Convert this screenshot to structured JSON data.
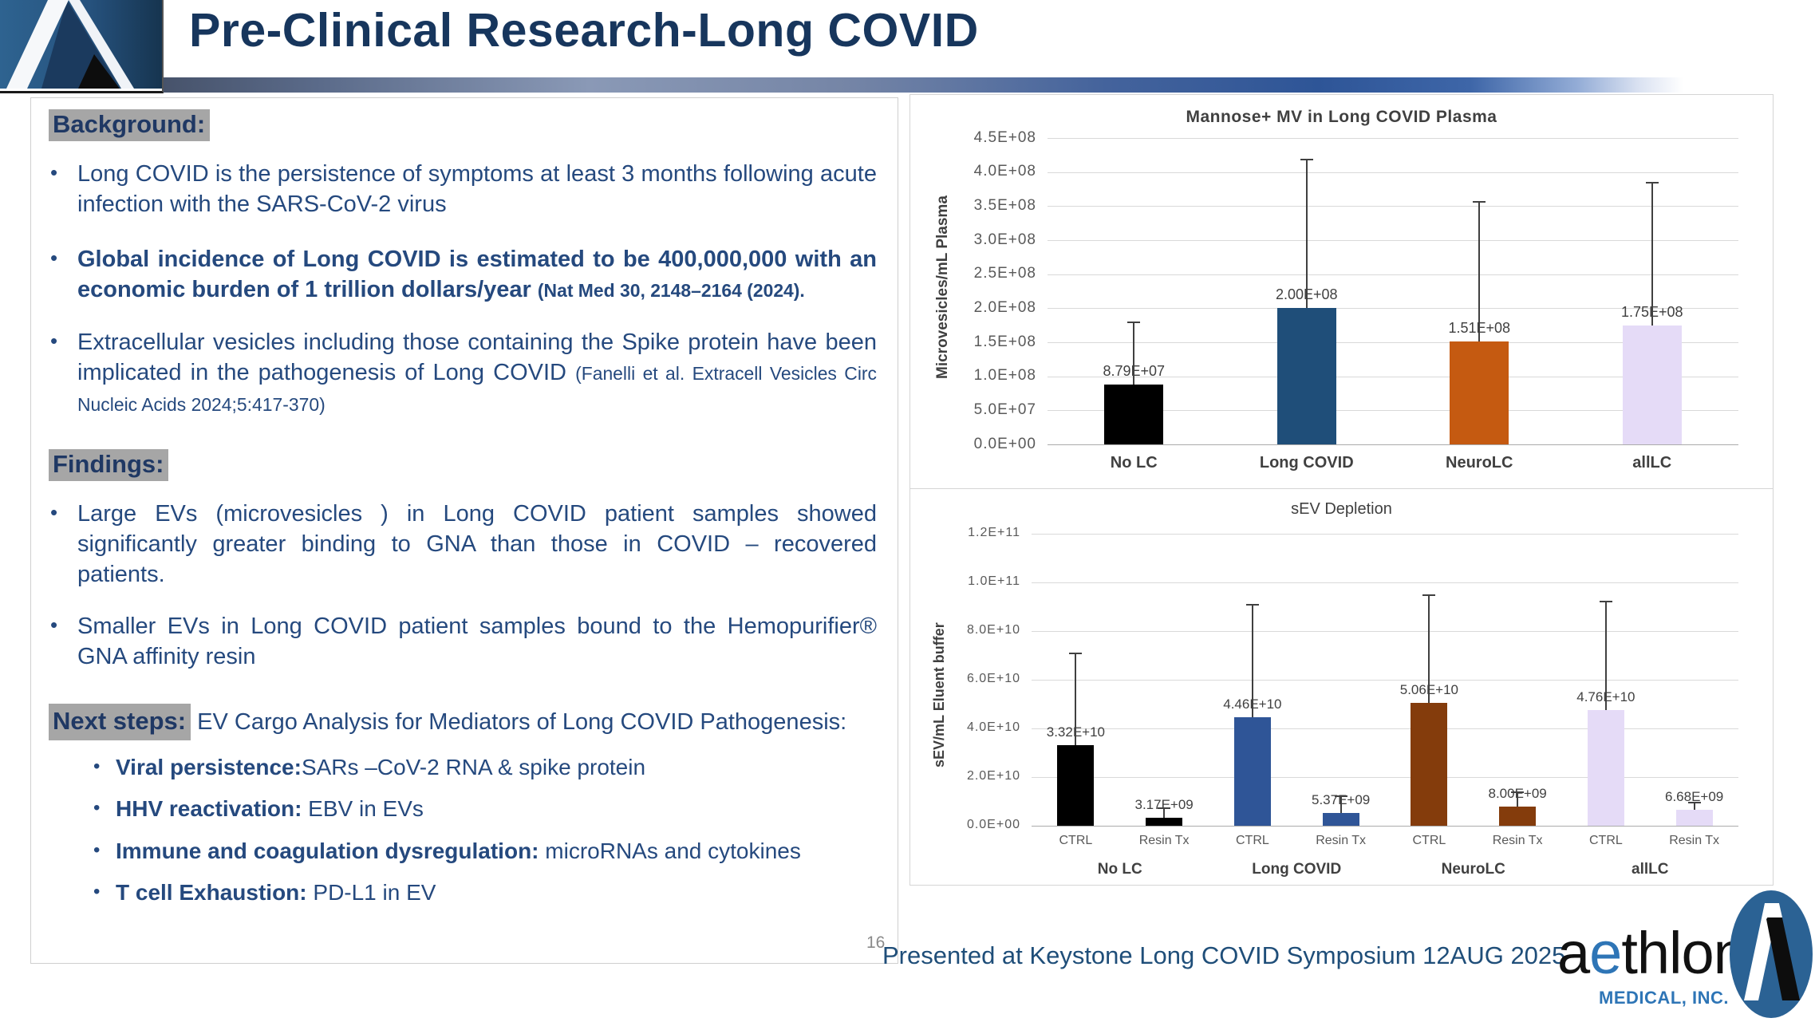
{
  "header": {
    "title": "Pre-Clinical Research-Long COVID"
  },
  "left_panel": {
    "background": {
      "heading": "Background:",
      "items": [
        {
          "runs": [
            {
              "t": "Long COVID is the persistence of symptoms at least 3 months following  acute infection with the SARS-CoV-2 virus"
            }
          ]
        },
        {
          "big": true,
          "runs": [
            {
              "t": "Global incidence of Long COVID is estimated to be 400,000,000 with an economic burden of 1 trillion dollars/year ",
              "b": true
            },
            {
              "t": "(Nat Med 30, 2148–2164 (2024).",
              "b": true,
              "small": true
            }
          ]
        },
        {
          "runs": [
            {
              "t": "Extracellular vesicles including those containing the  Spike protein have been implicated in the pathogenesis of Long COVID "
            },
            {
              "t": "(Fanelli et al. Extracell Vesicles Circ Nucleic Acids 2024;5:417-370)",
              "small": true
            }
          ]
        }
      ]
    },
    "findings": {
      "heading": "Findings:",
      "items": [
        {
          "runs": [
            {
              "t": "Large EVs (microvesicles ) in Long COVID patient samples showed significantly greater binding to GNA than those in COVID – recovered patients."
            }
          ]
        },
        {
          "runs": [
            {
              "t": "Smaller EVs in Long COVID patient samples bound to the Hemopurifier® GNA affinity resin"
            }
          ]
        }
      ]
    },
    "next_steps": {
      "heading": "Next steps:",
      "intro": [
        {
          "t": " EV Cargo Analysis for Mediators   of Long COVID Pathogenesis:"
        }
      ],
      "items": [
        {
          "runs": [
            {
              "t": "Viral persistence:",
              "b": true
            },
            {
              "t": "SARs –CoV-2 RNA & spike protein"
            }
          ]
        },
        {
          "runs": [
            {
              "t": "HHV reactivation: ",
              "b": true
            },
            {
              "t": "EBV in EVs"
            }
          ]
        },
        {
          "runs": [
            {
              "t": "Immune and coagulation dysregulation: ",
              "b": true
            },
            {
              "t": "microRNAs and cytokines"
            }
          ]
        },
        {
          "runs": [
            {
              "t": "T cell Exhaustion: ",
              "b": true
            },
            {
              "t": "PD-L1 in EV"
            }
          ]
        }
      ]
    }
  },
  "footer": {
    "page_number": "16",
    "caption": "Presented at Keystone Long COVID Symposium 12AUG 2025",
    "logo_wordmark_prefix": "a",
    "logo_wordmark_accent": "e",
    "logo_wordmark_suffix": "thlon",
    "logo_subtext": "MEDICAL, INC.",
    "logo_accent_color": "#2E75B6"
  },
  "chart_data": [
    {
      "type": "bar",
      "title": "Mannose+ MV in Long COVID Plasma",
      "ylabel": "Microvesicles/mL Plasma",
      "xlabel": "",
      "ylim": [
        0,
        450000000
      ],
      "grid": true,
      "yticks": [
        {
          "v": 0,
          "label": "0.0E+00"
        },
        {
          "v": 50000000,
          "label": "5.0E+07"
        },
        {
          "v": 100000000,
          "label": "1.0E+08"
        },
        {
          "v": 150000000,
          "label": "1.5E+08"
        },
        {
          "v": 200000000,
          "label": "2.0E+08"
        },
        {
          "v": 250000000,
          "label": "2.5E+08"
        },
        {
          "v": 300000000,
          "label": "3.0E+08"
        },
        {
          "v": 350000000,
          "label": "3.5E+08"
        },
        {
          "v": 400000000,
          "label": "4.0E+08"
        },
        {
          "v": 450000000,
          "label": "4.5E+08"
        }
      ],
      "bars": [
        {
          "cat": "No LC",
          "value": 87900000,
          "label": "8.79E+07",
          "err_top": 180000000,
          "color": "#000000"
        },
        {
          "cat": "Long COVID",
          "value": 200000000,
          "label": "2.00E+08",
          "err_top": 420000000,
          "color": "#1F4E79"
        },
        {
          "cat": "NeuroLC",
          "value": 151000000,
          "label": "1.51E+08",
          "err_top": 358000000,
          "color": "#C55A11"
        },
        {
          "cat": "allLC",
          "value": 175000000,
          "label": "1.75E+08",
          "err_top": 385000000,
          "color": "#E5DBF7"
        }
      ]
    },
    {
      "type": "bar",
      "title": "sEV Depletion",
      "ylabel": "sEV/mL Eluent buffer",
      "xlabel": "",
      "ylim": [
        0,
        120000000000
      ],
      "grid": true,
      "yticks": [
        {
          "v": 0,
          "label": "0.0E+00"
        },
        {
          "v": 20000000000,
          "label": "2.0E+10"
        },
        {
          "v": 40000000000,
          "label": "4.0E+10"
        },
        {
          "v": 60000000000,
          "label": "6.0E+10"
        },
        {
          "v": 80000000000,
          "label": "8.0E+10"
        },
        {
          "v": 100000000000,
          "label": "1.0E+11"
        },
        {
          "v": 120000000000,
          "label": "1.2E+11"
        }
      ],
      "bars": [
        {
          "group": "No LC",
          "sub": "CTRL",
          "value": 33200000000,
          "label": "3.32E+10",
          "err_top": 71000000000,
          "color": "#000000"
        },
        {
          "group": "No LC",
          "sub": "Resin Tx",
          "value": 3170000000,
          "label": "3.17E+09",
          "err_top": 7500000000,
          "color": "#000000"
        },
        {
          "group": "Long COVID",
          "sub": "CTRL",
          "value": 44600000000,
          "label": "4.46E+10",
          "err_top": 91000000000,
          "color": "#2F5597"
        },
        {
          "group": "Long COVID",
          "sub": "Resin Tx",
          "value": 5370000000,
          "label": "5.37E+09",
          "err_top": 12500000000,
          "color": "#2F5597"
        },
        {
          "group": "NeuroLC",
          "sub": "CTRL",
          "value": 50600000000,
          "label": "5.06E+10",
          "err_top": 95000000000,
          "color": "#843C0C"
        },
        {
          "group": "NeuroLC",
          "sub": "Resin Tx",
          "value": 8000000000,
          "label": "8.00E+09",
          "err_top": 14000000000,
          "color": "#843C0C"
        },
        {
          "group": "allLC",
          "sub": "CTRL",
          "value": 47600000000,
          "label": "4.76E+10",
          "err_top": 92500000000,
          "color": "#E5DBF7"
        },
        {
          "group": "allLC",
          "sub": "Resin Tx",
          "value": 6680000000,
          "label": "6.68E+09",
          "err_top": 10000000000,
          "color": "#E5DBF7"
        }
      ]
    }
  ]
}
